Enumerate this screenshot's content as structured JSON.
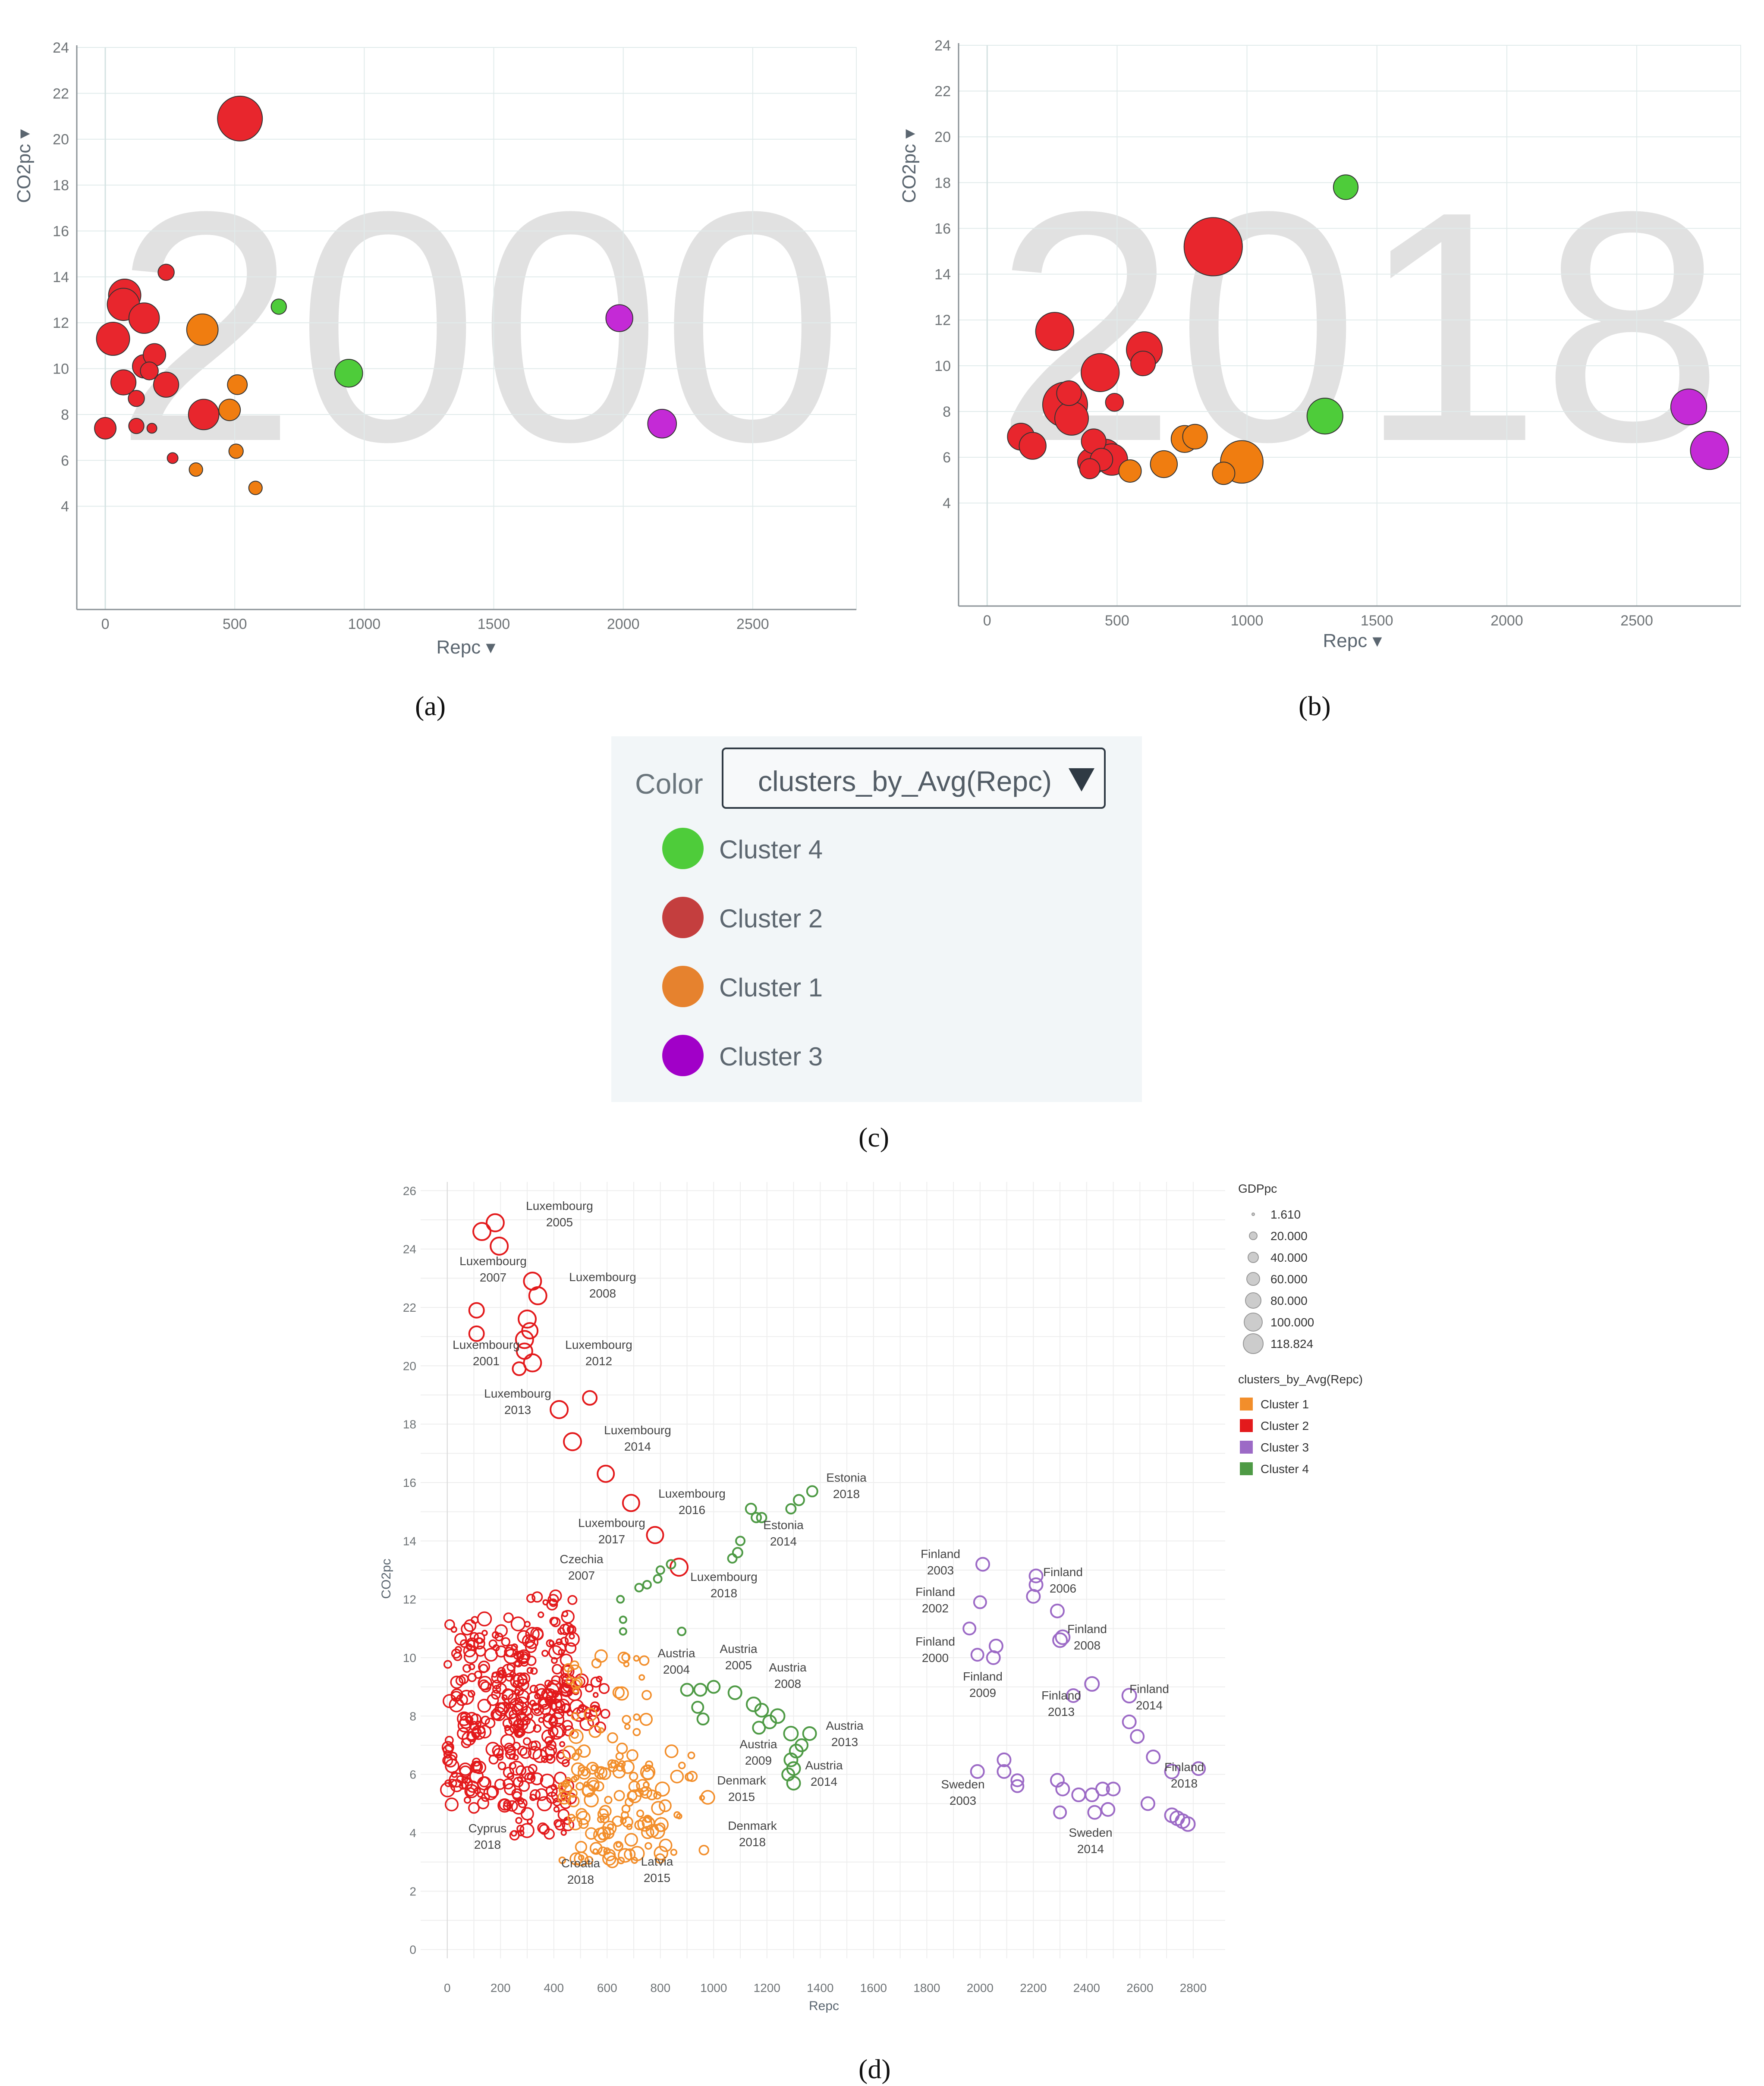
{
  "colors": {
    "cluster1": "#f07d10",
    "cluster2": "#e8262d",
    "cluster3": "#c42ad6",
    "cluster4": "#4ecc3a",
    "d_cluster1": "#f28e2b",
    "d_cluster2": "#e31a1c",
    "d_cluster3": "#9c6ac6",
    "d_cluster4": "#4e9a45"
  },
  "panel_labels": {
    "a": "(a)",
    "b": "(b)",
    "c": "(c)",
    "d": "(d)"
  },
  "legend_c": {
    "color_label": "Color",
    "dropdown_value": "clusters_by_Avg(Repc)",
    "items": [
      {
        "label": "Cluster 4",
        "color": "#4ecc3a"
      },
      {
        "label": "Cluster 2",
        "color": "#c43e3e"
      },
      {
        "label": "Cluster 1",
        "color": "#e6822e"
      },
      {
        "label": "Cluster 3",
        "color": "#a100c8"
      }
    ]
  },
  "chart_data": [
    {
      "id": "a",
      "type": "scatter",
      "watermark": "2000",
      "xlabel": "Repc ▾",
      "ylabel": "CO2pc ▾",
      "xlim": [
        -110,
        2900
      ],
      "ylim": [
        -0.5,
        24
      ],
      "xticks": [
        0,
        500,
        1000,
        1500,
        2000,
        2500
      ],
      "yticks": [
        4,
        6,
        8,
        10,
        12,
        14,
        16,
        18,
        20,
        22,
        24
      ],
      "points": [
        {
          "x": 520,
          "y": 20.9,
          "r": 1.0,
          "c": 2
        },
        {
          "x": 75,
          "y": 13.2,
          "r": 0.72,
          "c": 2
        },
        {
          "x": 70,
          "y": 12.8,
          "r": 0.72,
          "c": 2
        },
        {
          "x": 150,
          "y": 12.2,
          "r": 0.68,
          "c": 2
        },
        {
          "x": 30,
          "y": 11.3,
          "r": 0.74,
          "c": 2
        },
        {
          "x": 235,
          "y": 14.2,
          "r": 0.36,
          "c": 2
        },
        {
          "x": 190,
          "y": 10.6,
          "r": 0.5,
          "c": 2
        },
        {
          "x": 150,
          "y": 10.1,
          "r": 0.52,
          "c": 2
        },
        {
          "x": 170,
          "y": 9.9,
          "r": 0.4,
          "c": 2
        },
        {
          "x": 70,
          "y": 9.4,
          "r": 0.56,
          "c": 2
        },
        {
          "x": 235,
          "y": 9.3,
          "r": 0.56,
          "c": 2
        },
        {
          "x": 120,
          "y": 8.7,
          "r": 0.36,
          "c": 2
        },
        {
          "x": 380,
          "y": 8.0,
          "r": 0.68,
          "c": 2
        },
        {
          "x": 0,
          "y": 7.4,
          "r": 0.48,
          "c": 2
        },
        {
          "x": 120,
          "y": 7.5,
          "r": 0.34,
          "c": 2
        },
        {
          "x": 180,
          "y": 7.4,
          "r": 0.22,
          "c": 2
        },
        {
          "x": 260,
          "y": 6.1,
          "r": 0.24,
          "c": 2
        },
        {
          "x": 375,
          "y": 11.7,
          "r": 0.7,
          "c": 1
        },
        {
          "x": 510,
          "y": 9.3,
          "r": 0.44,
          "c": 1
        },
        {
          "x": 480,
          "y": 8.2,
          "r": 0.48,
          "c": 1
        },
        {
          "x": 505,
          "y": 6.4,
          "r": 0.32,
          "c": 1
        },
        {
          "x": 350,
          "y": 5.6,
          "r": 0.3,
          "c": 1
        },
        {
          "x": 580,
          "y": 4.8,
          "r": 0.3,
          "c": 1
        },
        {
          "x": 670,
          "y": 12.7,
          "r": 0.34,
          "c": 4
        },
        {
          "x": 940,
          "y": 9.8,
          "r": 0.62,
          "c": 4
        },
        {
          "x": 1985,
          "y": 12.2,
          "r": 0.6,
          "c": 3
        },
        {
          "x": 2150,
          "y": 7.6,
          "r": 0.64,
          "c": 3
        }
      ]
    },
    {
      "id": "b",
      "type": "scatter",
      "watermark": "2018",
      "xlabel": "Repc ▾",
      "ylabel": "CO2pc ▾",
      "xlim": [
        -110,
        2900
      ],
      "ylim": [
        -0.5,
        24
      ],
      "xticks": [
        0,
        500,
        1000,
        1500,
        2000,
        2500
      ],
      "yticks": [
        4,
        6,
        8,
        10,
        12,
        14,
        16,
        18,
        20,
        22,
        24
      ],
      "points": [
        {
          "x": 870,
          "y": 15.2,
          "r": 1.3,
          "c": 2
        },
        {
          "x": 260,
          "y": 11.5,
          "r": 0.85,
          "c": 2
        },
        {
          "x": 605,
          "y": 10.7,
          "r": 0.8,
          "c": 2
        },
        {
          "x": 600,
          "y": 10.1,
          "r": 0.55,
          "c": 2
        },
        {
          "x": 435,
          "y": 9.7,
          "r": 0.85,
          "c": 2
        },
        {
          "x": 490,
          "y": 8.4,
          "r": 0.4,
          "c": 2
        },
        {
          "x": 300,
          "y": 8.3,
          "r": 1.0,
          "c": 2
        },
        {
          "x": 315,
          "y": 8.8,
          "r": 0.55,
          "c": 2
        },
        {
          "x": 325,
          "y": 7.7,
          "r": 0.75,
          "c": 2
        },
        {
          "x": 130,
          "y": 6.9,
          "r": 0.6,
          "c": 2
        },
        {
          "x": 175,
          "y": 6.5,
          "r": 0.6,
          "c": 2
        },
        {
          "x": 410,
          "y": 6.7,
          "r": 0.55,
          "c": 2
        },
        {
          "x": 455,
          "y": 6.1,
          "r": 0.7,
          "c": 2
        },
        {
          "x": 400,
          "y": 5.8,
          "r": 0.6,
          "c": 2
        },
        {
          "x": 480,
          "y": 5.9,
          "r": 0.7,
          "c": 2
        },
        {
          "x": 440,
          "y": 5.9,
          "r": 0.5,
          "c": 2
        },
        {
          "x": 395,
          "y": 5.5,
          "r": 0.45,
          "c": 2
        },
        {
          "x": 980,
          "y": 5.8,
          "r": 0.95,
          "c": 1
        },
        {
          "x": 760,
          "y": 6.8,
          "r": 0.6,
          "c": 1
        },
        {
          "x": 800,
          "y": 6.9,
          "r": 0.55,
          "c": 1
        },
        {
          "x": 680,
          "y": 5.7,
          "r": 0.6,
          "c": 1
        },
        {
          "x": 910,
          "y": 5.3,
          "r": 0.5,
          "c": 1
        },
        {
          "x": 550,
          "y": 5.4,
          "r": 0.5,
          "c": 1
        },
        {
          "x": 1380,
          "y": 17.8,
          "r": 0.55,
          "c": 4
        },
        {
          "x": 1300,
          "y": 7.8,
          "r": 0.8,
          "c": 4
        },
        {
          "x": 2700,
          "y": 8.2,
          "r": 0.8,
          "c": 3
        },
        {
          "x": 2780,
          "y": 6.3,
          "r": 0.85,
          "c": 3
        }
      ]
    },
    {
      "id": "d",
      "type": "scatter",
      "xlabel": "Repc",
      "ylabel": "CO2pc",
      "xlim": [
        -100,
        2920
      ],
      "ylim": [
        -0.3,
        26.3
      ],
      "xticks": [
        0,
        200,
        400,
        600,
        800,
        1000,
        1200,
        1400,
        1600,
        1800,
        2000,
        2200,
        2400,
        2600,
        2800
      ],
      "yticks": [
        0,
        2,
        4,
        6,
        8,
        10,
        12,
        14,
        16,
        18,
        20,
        22,
        24,
        26
      ],
      "size_legend": {
        "title": "GDPpc",
        "values": [
          "1.610",
          "20.000",
          "40.000",
          "60.000",
          "80.000",
          "100.000",
          "118.824"
        ]
      },
      "color_legend": {
        "title": "clusters_by_Avg(Repc)",
        "items": [
          "Cluster 1",
          "Cluster 2",
          "Cluster 3",
          "Cluster 4"
        ]
      },
      "series": [
        {
          "name": "Cluster 2",
          "points": [
            [
              180,
              24.9,
              1.0
            ],
            [
              130,
              24.6,
              1.0
            ],
            [
              195,
              24.1,
              1.0
            ],
            [
              320,
              22.9,
              1.0
            ],
            [
              340,
              22.4,
              1.0
            ],
            [
              110,
              21.9,
              0.85
            ],
            [
              300,
              21.6,
              1.0
            ],
            [
              310,
              21.2,
              0.9
            ],
            [
              290,
              20.9,
              1.0
            ],
            [
              110,
              21.1,
              0.85
            ],
            [
              290,
              20.5,
              0.9
            ],
            [
              320,
              20.1,
              1.0
            ],
            [
              270,
              19.9,
              0.75
            ],
            [
              535,
              18.9,
              0.8
            ],
            [
              420,
              18.5,
              1.0
            ],
            [
              470,
              17.4,
              1.0
            ],
            [
              595,
              16.3,
              0.95
            ],
            [
              690,
              15.3,
              0.95
            ],
            [
              780,
              14.2,
              0.95
            ],
            [
              870,
              13.1,
              1.0
            ]
          ]
        },
        {
          "name": "Cluster 4",
          "points": [
            [
              1370,
              15.7,
              0.6
            ],
            [
              1320,
              15.4,
              0.6
            ],
            [
              1290,
              15.1,
              0.55
            ],
            [
              1140,
              15.1,
              0.6
            ],
            [
              1160,
              14.8,
              0.55
            ],
            [
              1180,
              14.8,
              0.55
            ],
            [
              1100,
              14.0,
              0.5
            ],
            [
              1090,
              13.6,
              0.55
            ],
            [
              1070,
              13.4,
              0.5
            ],
            [
              800,
              13.0,
              0.45
            ],
            [
              840,
              13.2,
              0.5
            ],
            [
              790,
              12.7,
              0.45
            ],
            [
              750,
              12.5,
              0.45
            ],
            [
              720,
              12.4,
              0.45
            ],
            [
              650,
              12.0,
              0.4
            ],
            [
              660,
              11.3,
              0.38
            ],
            [
              660,
              10.9,
              0.38
            ],
            [
              880,
              10.9,
              0.45
            ],
            [
              900,
              8.9,
              0.7
            ],
            [
              950,
              8.9,
              0.7
            ],
            [
              1000,
              9.0,
              0.7
            ],
            [
              1080,
              8.8,
              0.75
            ],
            [
              940,
              8.3,
              0.65
            ],
            [
              960,
              7.9,
              0.65
            ],
            [
              1150,
              8.4,
              0.8
            ],
            [
              1180,
              8.2,
              0.75
            ],
            [
              1240,
              8.0,
              0.8
            ],
            [
              1210,
              7.8,
              0.75
            ],
            [
              1170,
              7.6,
              0.7
            ],
            [
              1290,
              7.4,
              0.8
            ],
            [
              1360,
              7.4,
              0.75
            ],
            [
              1310,
              6.8,
              0.75
            ],
            [
              1330,
              7.0,
              0.7
            ],
            [
              1290,
              6.5,
              0.75
            ],
            [
              1300,
              6.2,
              0.75
            ],
            [
              1280,
              6.0,
              0.7
            ],
            [
              1300,
              5.7,
              0.75
            ]
          ]
        },
        {
          "name": "Cluster 3",
          "points": [
            [
              2010,
              13.2,
              0.75
            ],
            [
              2210,
              12.8,
              0.75
            ],
            [
              2210,
              12.5,
              0.75
            ],
            [
              2200,
              12.1,
              0.75
            ],
            [
              2000,
              11.9,
              0.7
            ],
            [
              2290,
              11.6,
              0.75
            ],
            [
              1960,
              11.0,
              0.7
            ],
            [
              2310,
              10.7,
              0.8
            ],
            [
              2300,
              10.6,
              0.8
            ],
            [
              2060,
              10.4,
              0.75
            ],
            [
              2050,
              10.0,
              0.75
            ],
            [
              1990,
              10.1,
              0.7
            ],
            [
              2420,
              9.1,
              0.8
            ],
            [
              2560,
              8.7,
              0.8
            ],
            [
              2350,
              8.7,
              0.75
            ],
            [
              2560,
              7.8,
              0.75
            ],
            [
              2590,
              7.3,
              0.75
            ],
            [
              2650,
              6.6,
              0.75
            ],
            [
              2720,
              6.1,
              0.8
            ],
            [
              2820,
              6.2,
              0.75
            ],
            [
              1990,
              6.1,
              0.75
            ],
            [
              2090,
              6.5,
              0.75
            ],
            [
              2090,
              6.1,
              0.75
            ],
            [
              2140,
              5.8,
              0.7
            ],
            [
              2140,
              5.6,
              0.7
            ],
            [
              2290,
              5.8,
              0.75
            ],
            [
              2310,
              5.5,
              0.75
            ],
            [
              2370,
              5.3,
              0.75
            ],
            [
              2420,
              5.3,
              0.75
            ],
            [
              2460,
              5.5,
              0.75
            ],
            [
              2500,
              5.5,
              0.75
            ],
            [
              2430,
              4.7,
              0.75
            ],
            [
              2480,
              4.8,
              0.75
            ],
            [
              2300,
              4.7,
              0.7
            ],
            [
              2630,
              5.0,
              0.75
            ],
            [
              2720,
              4.6,
              0.8
            ],
            [
              2740,
              4.5,
              0.8
            ],
            [
              2760,
              4.4,
              0.8
            ],
            [
              2780,
              4.3,
              0.8
            ]
          ]
        }
      ]
    }
  ]
}
